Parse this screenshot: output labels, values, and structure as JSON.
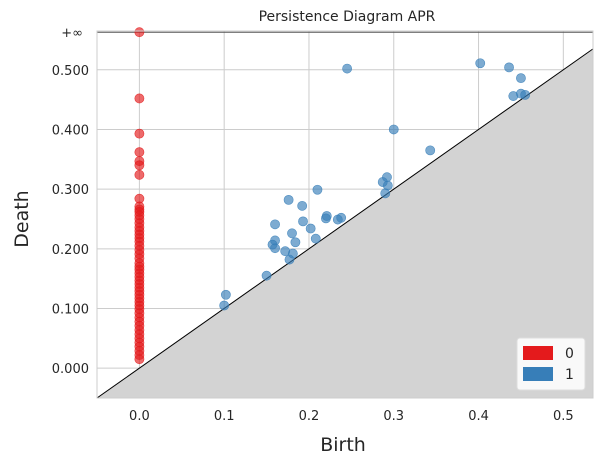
{
  "chart_data": {
    "type": "scatter",
    "title": "Persistence Diagram APR",
    "xlabel": "Birth",
    "ylabel": "Death",
    "xlim": [
      -0.05,
      0.535
    ],
    "ylim": [
      -0.05,
      0.565
    ],
    "x_ticks": [
      {
        "value": 0.0,
        "label": "0.0"
      },
      {
        "value": 0.1,
        "label": "0.1"
      },
      {
        "value": 0.2,
        "label": "0.2"
      },
      {
        "value": 0.3,
        "label": "0.3"
      },
      {
        "value": 0.4,
        "label": "0.4"
      },
      {
        "value": 0.5,
        "label": "0.5"
      }
    ],
    "y_ticks": [
      {
        "value": 0.0,
        "label": "0.000"
      },
      {
        "value": 0.1,
        "label": "0.100"
      },
      {
        "value": 0.2,
        "label": "0.200"
      },
      {
        "value": 0.3,
        "label": "0.300"
      },
      {
        "value": 0.4,
        "label": "0.400"
      },
      {
        "value": 0.5,
        "label": "0.500"
      }
    ],
    "infinity_line": {
      "value": 0.563,
      "label": "+∞"
    },
    "grid": true,
    "legend_position": "bottom-right",
    "series": [
      {
        "name": "0",
        "color": "#e41a1c",
        "points": [
          [
            0,
            0.563
          ],
          [
            0,
            0.452
          ],
          [
            0,
            0.393
          ],
          [
            0,
            0.362
          ],
          [
            0,
            0.347
          ],
          [
            0,
            0.34
          ],
          [
            0,
            0.324
          ],
          [
            0,
            0.284
          ],
          [
            0,
            0.271
          ],
          [
            0,
            0.266
          ],
          [
            0,
            0.262
          ],
          [
            0,
            0.256
          ],
          [
            0,
            0.25
          ],
          [
            0,
            0.243
          ],
          [
            0,
            0.236
          ],
          [
            0,
            0.23
          ],
          [
            0,
            0.224
          ],
          [
            0,
            0.218
          ],
          [
            0,
            0.212
          ],
          [
            0,
            0.205
          ],
          [
            0,
            0.198
          ],
          [
            0,
            0.191
          ],
          [
            0,
            0.184
          ],
          [
            0,
            0.176
          ],
          [
            0,
            0.17
          ],
          [
            0,
            0.165
          ],
          [
            0,
            0.159
          ],
          [
            0,
            0.153
          ],
          [
            0,
            0.147
          ],
          [
            0,
            0.141
          ],
          [
            0,
            0.135
          ],
          [
            0,
            0.129
          ],
          [
            0,
            0.123
          ],
          [
            0,
            0.117
          ],
          [
            0,
            0.111
          ],
          [
            0,
            0.105
          ],
          [
            0,
            0.099
          ],
          [
            0,
            0.092
          ],
          [
            0,
            0.085
          ],
          [
            0,
            0.078
          ],
          [
            0,
            0.071
          ],
          [
            0,
            0.064
          ],
          [
            0,
            0.057
          ],
          [
            0,
            0.05
          ],
          [
            0,
            0.043
          ],
          [
            0,
            0.036
          ],
          [
            0,
            0.029
          ],
          [
            0,
            0.022
          ],
          [
            0,
            0.015
          ]
        ]
      },
      {
        "name": "1",
        "color": "#377eb8",
        "points": [
          [
            0.245,
            0.502
          ],
          [
            0.402,
            0.511
          ],
          [
            0.436,
            0.504
          ],
          [
            0.45,
            0.486
          ],
          [
            0.441,
            0.456
          ],
          [
            0.45,
            0.46
          ],
          [
            0.455,
            0.458
          ],
          [
            0.3,
            0.4
          ],
          [
            0.343,
            0.365
          ],
          [
            0.292,
            0.32
          ],
          [
            0.287,
            0.312
          ],
          [
            0.293,
            0.306
          ],
          [
            0.29,
            0.293
          ],
          [
            0.21,
            0.299
          ],
          [
            0.176,
            0.282
          ],
          [
            0.192,
            0.272
          ],
          [
            0.16,
            0.241
          ],
          [
            0.193,
            0.246
          ],
          [
            0.221,
            0.255
          ],
          [
            0.22,
            0.251
          ],
          [
            0.238,
            0.252
          ],
          [
            0.234,
            0.249
          ],
          [
            0.202,
            0.234
          ],
          [
            0.18,
            0.226
          ],
          [
            0.16,
            0.214
          ],
          [
            0.208,
            0.217
          ],
          [
            0.184,
            0.211
          ],
          [
            0.157,
            0.207
          ],
          [
            0.16,
            0.201
          ],
          [
            0.172,
            0.196
          ],
          [
            0.181,
            0.192
          ],
          [
            0.177,
            0.182
          ],
          [
            0.15,
            0.155
          ],
          [
            0.102,
            0.123
          ],
          [
            0.1,
            0.105
          ]
        ]
      }
    ]
  }
}
